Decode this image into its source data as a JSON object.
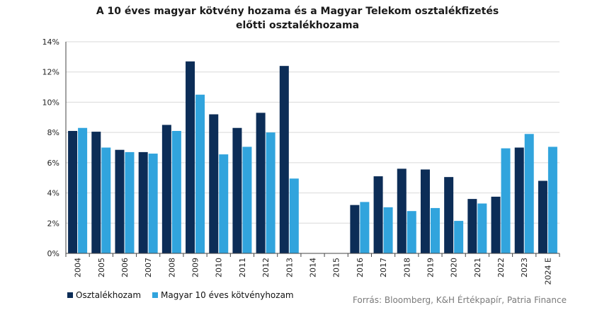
{
  "title": "A 10 éves magyar kötvény hozama és a Magyar Telekom osztalékfizetés előtti osztalékhozama",
  "source": "Forrás: Bloomberg, K&H Értékpapír, Patria Finance",
  "colors": {
    "series1": "#0c2d57",
    "series2": "#31a4dd",
    "grid": "#d9d9d9",
    "axis": "#444444"
  },
  "chart_data": {
    "type": "bar",
    "title": "A 10 éves magyar kötvény hozama és a Magyar Telekom osztalékfizetés előtti osztalékhozama",
    "categories": [
      "2004",
      "2005",
      "2006",
      "2007",
      "2008",
      "2009",
      "2010",
      "2011",
      "2012",
      "2013",
      "2014",
      "2015",
      "2016",
      "2017",
      "2018",
      "2019",
      "2020",
      "2021",
      "2022",
      "2023",
      "2024 E"
    ],
    "series": [
      {
        "name": "Osztalékhozam",
        "values": [
          8.1,
          8.05,
          6.85,
          6.7,
          8.5,
          12.7,
          9.2,
          8.3,
          9.3,
          12.4,
          null,
          null,
          3.2,
          5.1,
          5.6,
          5.55,
          5.05,
          3.6,
          3.75,
          7.0,
          4.8
        ]
      },
      {
        "name": "Magyar 10 éves kötvényhozam",
        "values": [
          8.3,
          7.0,
          6.7,
          6.6,
          8.1,
          10.5,
          6.55,
          7.05,
          8.0,
          4.95,
          null,
          null,
          3.4,
          3.05,
          2.8,
          3.0,
          2.15,
          3.3,
          6.95,
          7.9,
          7.05
        ]
      }
    ],
    "ylim": [
      0,
      14
    ],
    "yticks": [
      "0%",
      "2%",
      "4%",
      "6%",
      "8%",
      "10%",
      "12%",
      "14%"
    ],
    "ytick_values": [
      0,
      2,
      4,
      6,
      8,
      10,
      12,
      14
    ],
    "grid": true,
    "legend": "bottom-left",
    "xlabel": "",
    "ylabel": ""
  }
}
